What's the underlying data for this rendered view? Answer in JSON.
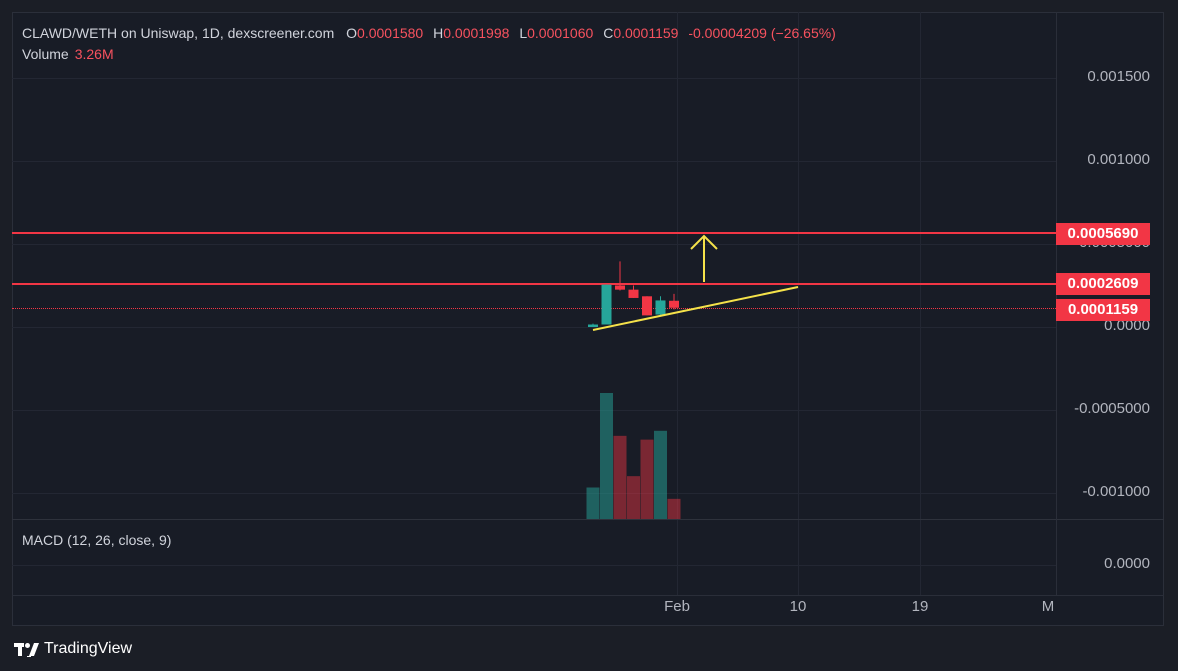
{
  "header": {
    "symbol_line": "CLAWD/WETH on Uniswap, 1D, dexscreener.com",
    "ohlc": [
      {
        "key": "O",
        "value": "0.0001580"
      },
      {
        "key": "H",
        "value": "0.0001998"
      },
      {
        "key": "L",
        "value": "0.0001060"
      },
      {
        "key": "C",
        "value": "0.0001159"
      }
    ],
    "change": "-0.00004209 (−26.65%)",
    "volume_label": "Volume",
    "volume_value": "3.26M"
  },
  "macd": {
    "label": "MACD (12, 26, close, 9)",
    "zero_tick": "0.0000"
  },
  "price_axis": {
    "ticks": [
      "0.001500",
      "0.001000",
      "0.0000",
      "-0.0005000",
      "-0.001000"
    ],
    "hidden_tick": "0.0005000"
  },
  "price_labels": {
    "resistance": "0.0005690",
    "support": "0.0002609",
    "last": "0.0001159"
  },
  "time_axis": {
    "ticks": [
      "Feb",
      "10",
      "19",
      "M"
    ]
  },
  "branding": {
    "name": "TradingView"
  },
  "colors": {
    "up": "#26a69a",
    "down": "#f23645",
    "level_line": "#f23645",
    "trendline": "#f5e24a",
    "arrow": "#f5e24a",
    "bg": "#181c26"
  },
  "chart_data": {
    "type": "candlestick",
    "title": "CLAWD/WETH on Uniswap, 1D, dexscreener.com",
    "candles": [
      {
        "o": 0.0,
        "h": 2e-05,
        "l": 0.0,
        "c": 1.5e-05,
        "vol": 0.25
      },
      {
        "o": 1.5e-05,
        "h": 0.000255,
        "l": 1.5e-05,
        "c": 0.000255,
        "vol": 1.0
      },
      {
        "o": 0.00025,
        "h": 0.000395,
        "l": 0.00022,
        "c": 0.000225,
        "vol": 0.66
      },
      {
        "o": 0.000225,
        "h": 0.00025,
        "l": 0.000175,
        "c": 0.000175,
        "vol": 0.34
      },
      {
        "o": 0.000185,
        "h": 0.000185,
        "l": 7e-05,
        "c": 7e-05,
        "vol": 0.63
      },
      {
        "o": 7.5e-05,
        "h": 0.000185,
        "l": 7e-05,
        "c": 0.00016,
        "vol": 0.7
      },
      {
        "o": 0.000158,
        "h": 0.0001998,
        "l": 0.000106,
        "c": 0.0001159,
        "vol": 0.16
      }
    ],
    "y_range": [
      -0.0011,
      0.0018
    ],
    "levels": [
      0.000569,
      0.0002609
    ],
    "last_price": 0.0001159
  }
}
